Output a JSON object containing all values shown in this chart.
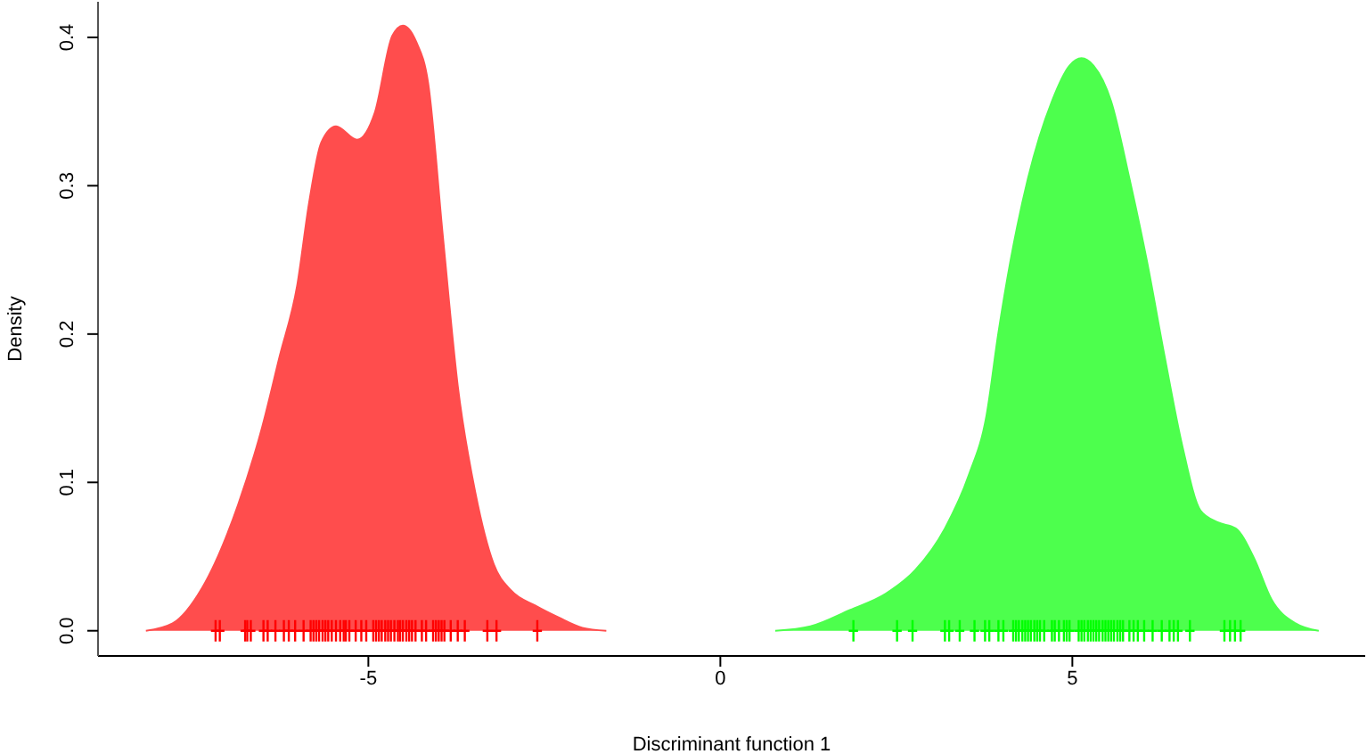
{
  "chart_data": {
    "type": "area",
    "xlabel": "Discriminant function 1",
    "ylabel": "Density",
    "xlim": [
      -8.84,
      9.16
    ],
    "xticks": [
      -5,
      0,
      5
    ],
    "ylim": [
      -0.017,
      0.424
    ],
    "yticks": [
      {
        "value": 0,
        "label": "0.0"
      },
      {
        "value": 0.1,
        "label": "0.1"
      },
      {
        "value": 0.2,
        "label": "0.2"
      },
      {
        "value": 0.3,
        "label": "0.3"
      },
      {
        "value": 0.4,
        "label": "0.4"
      }
    ],
    "grid": false,
    "series": [
      {
        "color": "#ff4d4d",
        "x": [
          -8.16,
          -7.78,
          -7.36,
          -6.85,
          -6.51,
          -6.26,
          -6.01,
          -5.84,
          -5.67,
          -5.46,
          -5.16,
          -4.91,
          -4.66,
          -4.51,
          -4.32,
          -4.15,
          -3.94,
          -3.73,
          -3.48,
          -3.22,
          -2.97,
          -2.63,
          -2.3,
          -1.96,
          -1.62
        ],
        "values": [
          0,
          0.005,
          0.029,
          0.085,
          0.137,
          0.185,
          0.233,
          0.289,
          0.329,
          0.34,
          0.331,
          0.349,
          0.401,
          0.408,
          0.397,
          0.369,
          0.265,
          0.165,
          0.093,
          0.045,
          0.027,
          0.017,
          0.009,
          0.002,
          0
        ]
      },
      {
        "color": "#4dff4d",
        "x": [
          0.78,
          1.28,
          1.84,
          2.35,
          2.77,
          3.19,
          3.53,
          3.78,
          3.95,
          4.12,
          4.37,
          4.71,
          4.96,
          5.13,
          5.3,
          5.55,
          5.81,
          6.06,
          6.31,
          6.56,
          6.82,
          7.07,
          7.32,
          7.58,
          7.83,
          8.17,
          8.5
        ],
        "values": [
          0,
          0.003,
          0.014,
          0.025,
          0.041,
          0.069,
          0.105,
          0.145,
          0.201,
          0.249,
          0.305,
          0.357,
          0.381,
          0.386,
          0.381,
          0.357,
          0.305,
          0.249,
          0.185,
          0.125,
          0.081,
          0.073,
          0.069,
          0.049,
          0.021,
          0.005,
          0
        ]
      },
      {
        "color": "#ff0000",
        "type": "scatter",
        "x": [
          -7.17,
          -7.11,
          -6.75,
          -6.72,
          -6.67,
          -6.49,
          -6.43,
          -6.32,
          -6.2,
          -6.13,
          -6.04,
          -5.92,
          -5.82,
          -5.78,
          -5.74,
          -5.7,
          -5.65,
          -5.61,
          -5.57,
          -5.52,
          -5.46,
          -5.4,
          -5.35,
          -5.32,
          -5.27,
          -5.18,
          -5.1,
          -5.03,
          -4.93,
          -4.89,
          -4.85,
          -4.81,
          -4.76,
          -4.72,
          -4.68,
          -4.63,
          -4.58,
          -4.55,
          -4.51,
          -4.46,
          -4.42,
          -4.38,
          -4.33,
          -4.24,
          -4.18,
          -4.08,
          -4.04,
          -4.0,
          -3.96,
          -3.92,
          -3.83,
          -3.73,
          -3.63,
          -3.31,
          -3.18,
          -2.6
        ],
        "values": [
          0,
          0,
          0,
          0,
          0,
          0,
          0,
          0,
          0,
          0,
          0,
          0,
          0,
          0,
          0,
          0,
          0,
          0,
          0,
          0,
          0,
          0,
          0,
          0,
          0,
          0,
          0,
          0,
          0,
          0,
          0,
          0,
          0,
          0,
          0,
          0,
          0,
          0,
          0,
          0,
          0,
          0,
          0,
          0,
          0,
          0,
          0,
          0,
          0,
          0,
          0,
          0,
          0,
          0,
          0,
          0
        ]
      },
      {
        "type": "scatter",
        "color": "#00ff00",
        "x": [
          1.89,
          2.51,
          2.73,
          3.19,
          3.25,
          3.4,
          3.61,
          3.76,
          3.82,
          3.95,
          4.02,
          4.16,
          4.2,
          4.24,
          4.29,
          4.33,
          4.37,
          4.41,
          4.46,
          4.5,
          4.54,
          4.6,
          4.71,
          4.75,
          4.81,
          4.88,
          4.92,
          4.96,
          5.09,
          5.13,
          5.17,
          5.22,
          5.26,
          5.3,
          5.34,
          5.38,
          5.43,
          5.47,
          5.51,
          5.55,
          5.59,
          5.64,
          5.68,
          5.72,
          5.81,
          5.87,
          5.93,
          6.02,
          6.14,
          6.27,
          6.38,
          6.44,
          6.5,
          6.67,
          7.16,
          7.24,
          7.31,
          7.39
        ],
        "values": [
          0,
          0,
          0,
          0,
          0,
          0,
          0,
          0,
          0,
          0,
          0,
          0,
          0,
          0,
          0,
          0,
          0,
          0,
          0,
          0,
          0,
          0,
          0,
          0,
          0,
          0,
          0,
          0,
          0,
          0,
          0,
          0,
          0,
          0,
          0,
          0,
          0,
          0,
          0,
          0,
          0,
          0,
          0,
          0,
          0,
          0,
          0,
          0,
          0,
          0,
          0,
          0,
          0,
          0,
          0,
          0,
          0,
          0
        ]
      }
    ]
  }
}
